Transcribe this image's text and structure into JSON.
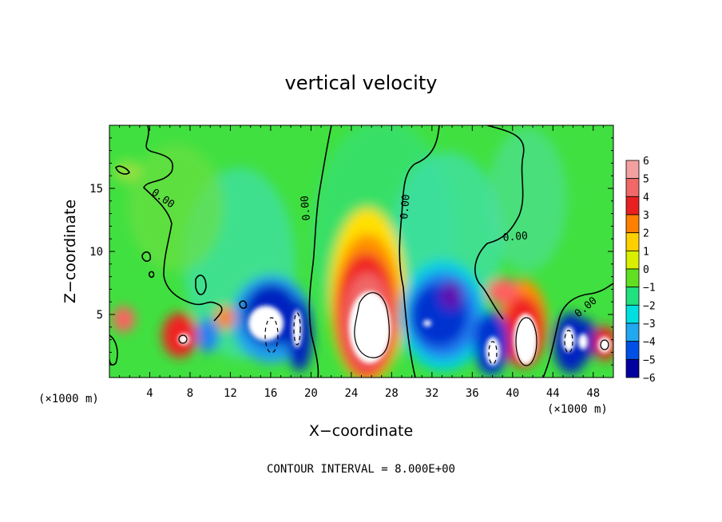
{
  "chart_data": {
    "type": "heatmap",
    "title": "vertical velocity",
    "xlabel": "X−coordinate",
    "ylabel": "Z−coordinate",
    "x_unit_left": "(×1000 m)",
    "x_unit_right": "(×1000 m)",
    "xlim": [
      0,
      50
    ],
    "ylim": [
      0,
      20
    ],
    "x_ticks": [
      4,
      8,
      12,
      16,
      20,
      24,
      28,
      32,
      36,
      40,
      44,
      48
    ],
    "x_tick_labels": [
      "4",
      "8",
      "12",
      "16",
      "20",
      "24",
      "28",
      "32",
      "36",
      "40",
      "44",
      "48"
    ],
    "y_ticks": [
      5,
      10,
      15
    ],
    "y_tick_labels": [
      "5",
      "10",
      "15"
    ],
    "colorbar": {
      "levels": [
        6,
        5,
        4,
        3,
        2,
        1,
        0,
        -1,
        -2,
        -3,
        -4,
        -5,
        -6
      ],
      "labels": [
        "6",
        "5",
        "4",
        "3",
        "2",
        "1",
        "0",
        "−1",
        "−2",
        "−3",
        "−4",
        "−5",
        "−6"
      ],
      "colors": [
        "#f4a0a0",
        "#f06868",
        "#e82020",
        "#ff8000",
        "#ffd000",
        "#d8f000",
        "#60e020",
        "#20e080",
        "#00e0e0",
        "#20a8f0",
        "#0050e8",
        "#0000a0",
        "#7a10c0"
      ]
    },
    "contour_labels": [
      "0.00",
      "0.00",
      "0.00",
      "0.00",
      "0.00"
    ],
    "grid": false,
    "note": "CONTOUR INTERVAL = 8.000E+00"
  },
  "colors": {
    "background_field": "#40e040",
    "saturated_high": "#ffffff"
  }
}
